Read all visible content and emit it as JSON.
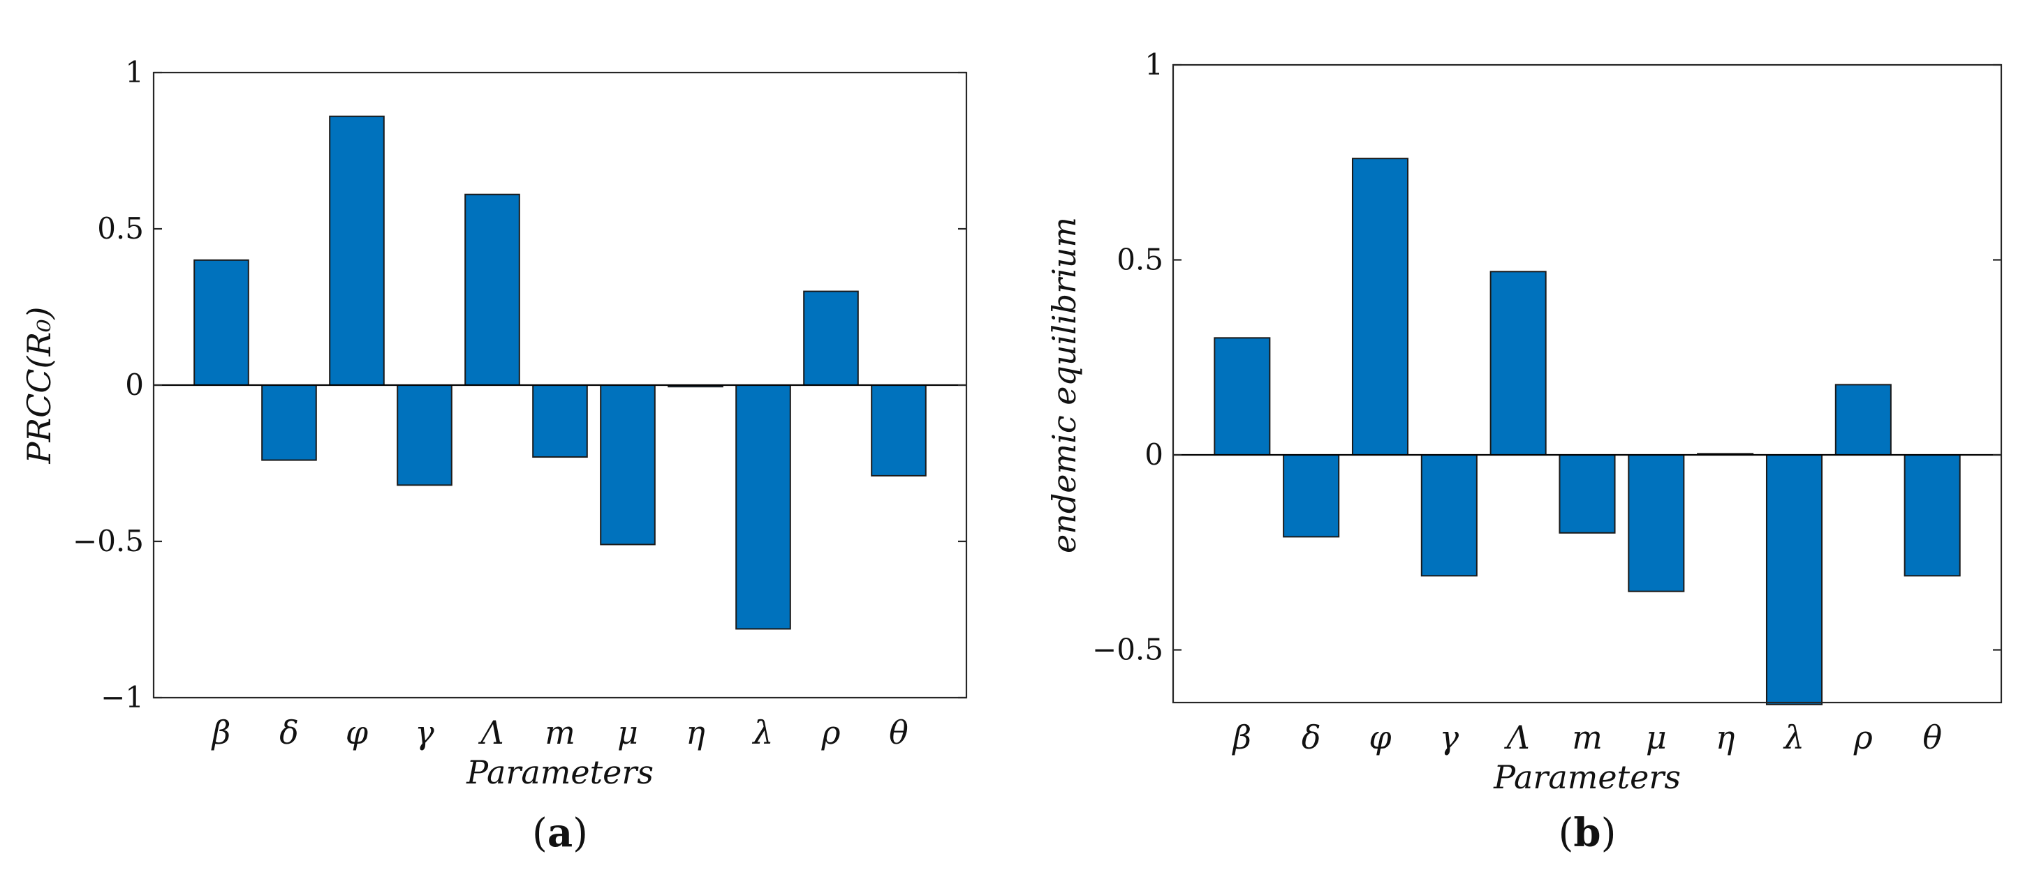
{
  "chart_data": [
    {
      "type": "bar",
      "panel_label": "(a)",
      "panel_open": "(",
      "panel_letter": "a",
      "panel_close": ")",
      "xlabel": "Parameters",
      "ylabel": "PRCC(R₀)",
      "categories": [
        "β",
        "δ",
        "φ",
        "γ",
        "Λ",
        "m",
        "μ",
        "η",
        "λ",
        "ρ",
        "θ"
      ],
      "values": [
        0.4,
        -0.24,
        0.86,
        -0.32,
        0.61,
        -0.23,
        -0.51,
        -0.005,
        -0.78,
        0.3,
        -0.29
      ],
      "ylim": [
        -1,
        1
      ],
      "yticks": [
        -1,
        -0.5,
        0,
        0.5,
        1
      ],
      "ytick_labels": [
        "−1",
        "−0.5",
        "0",
        "0.5",
        "1"
      ],
      "grid": false,
      "bar_color": "#0072BD"
    },
    {
      "type": "bar",
      "panel_label": "(b)",
      "panel_open": "(",
      "panel_letter": "b",
      "panel_close": ")",
      "xlabel": "Parameters",
      "ylabel": "endemic equilibrium",
      "categories": [
        "β",
        "δ",
        "φ",
        "γ",
        "Λ",
        "m",
        "μ",
        "η",
        "λ",
        "ρ",
        "θ"
      ],
      "values": [
        0.3,
        -0.21,
        0.76,
        -0.31,
        0.47,
        -0.2,
        -0.35,
        0.003,
        -0.64,
        0.18,
        -0.31
      ],
      "ylim": [
        -0.635,
        1
      ],
      "yticks": [
        -0.5,
        0,
        0.5,
        1
      ],
      "ytick_labels": [
        "−0.5",
        "0",
        "0.5",
        "1"
      ],
      "grid": false,
      "bar_color": "#0072BD"
    }
  ]
}
